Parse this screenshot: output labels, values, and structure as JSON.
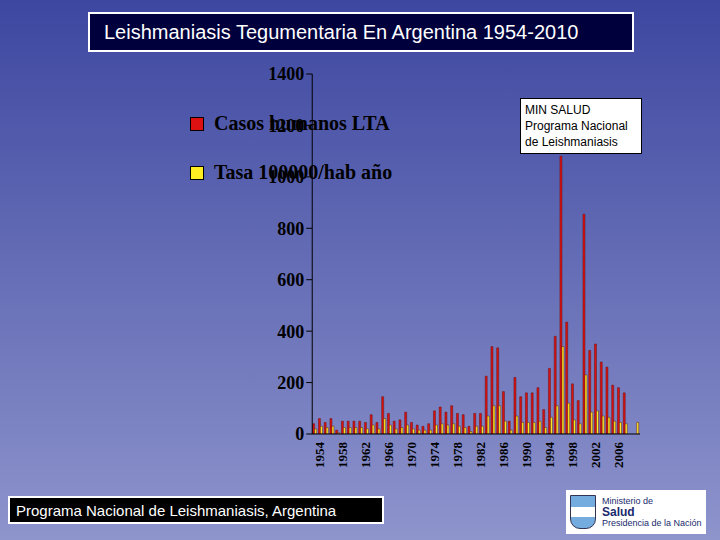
{
  "chart_data": {
    "type": "bar",
    "title": "Leishmaniasis Tegumentaria En Argentina 1954-2010",
    "categories": [
      "1954",
      null,
      null,
      null,
      "1958",
      null,
      null,
      null,
      "1962",
      null,
      null,
      null,
      "1966",
      null,
      null,
      null,
      "1970",
      null,
      null,
      null,
      "1974",
      null,
      null,
      null,
      "1978",
      null,
      null,
      null,
      "1982",
      null,
      null,
      null,
      "1986",
      null,
      null,
      null,
      "1990",
      null,
      null,
      null,
      "1994",
      null,
      null,
      null,
      "1998",
      null,
      null,
      null,
      "2002",
      null,
      null,
      null,
      "2006",
      null,
      null,
      null,
      null
    ],
    "series": [
      {
        "name": "Casos humanos LTA",
        "color": "#dd1111",
        "values": [
          40,
          60,
          45,
          60,
          15,
          50,
          50,
          50,
          50,
          45,
          75,
          45,
          145,
          80,
          50,
          55,
          85,
          45,
          35,
          30,
          40,
          90,
          105,
          85,
          110,
          80,
          75,
          30,
          80,
          80,
          225,
          340,
          335,
          165,
          50,
          220,
          145,
          160,
          160,
          180,
          95,
          255,
          380,
          1080,
          435,
          195,
          130,
          855,
          325,
          350,
          280,
          260,
          190,
          180,
          160,
          null,
          null
        ]
      },
      {
        "name": "Tasa 100000/hab año",
        "color": "#ffee22",
        "values": [
          20,
          30,
          25,
          30,
          5,
          25,
          25,
          25,
          25,
          20,
          35,
          20,
          60,
          35,
          20,
          25,
          35,
          20,
          15,
          15,
          15,
          35,
          40,
          35,
          40,
          30,
          25,
          10,
          30,
          30,
          70,
          110,
          110,
          50,
          15,
          70,
          45,
          45,
          45,
          50,
          25,
          65,
          110,
          340,
          120,
          55,
          40,
          230,
          85,
          90,
          70,
          65,
          50,
          45,
          40,
          null,
          45
        ]
      }
    ],
    "ylim": [
      0,
      1400
    ],
    "yticks": [
      0,
      200,
      400,
      600,
      800,
      1000,
      1200,
      1400
    ],
    "legend": "upper left",
    "annotations": [
      "MIN SALUD",
      "Programa Nacional",
      "de Leishmaniasis"
    ],
    "source": "Programa Nacional de Leishmaniasis, Argentina",
    "logo": [
      "Ministerio de",
      "Salud",
      "Presidencia de la Nación"
    ]
  }
}
